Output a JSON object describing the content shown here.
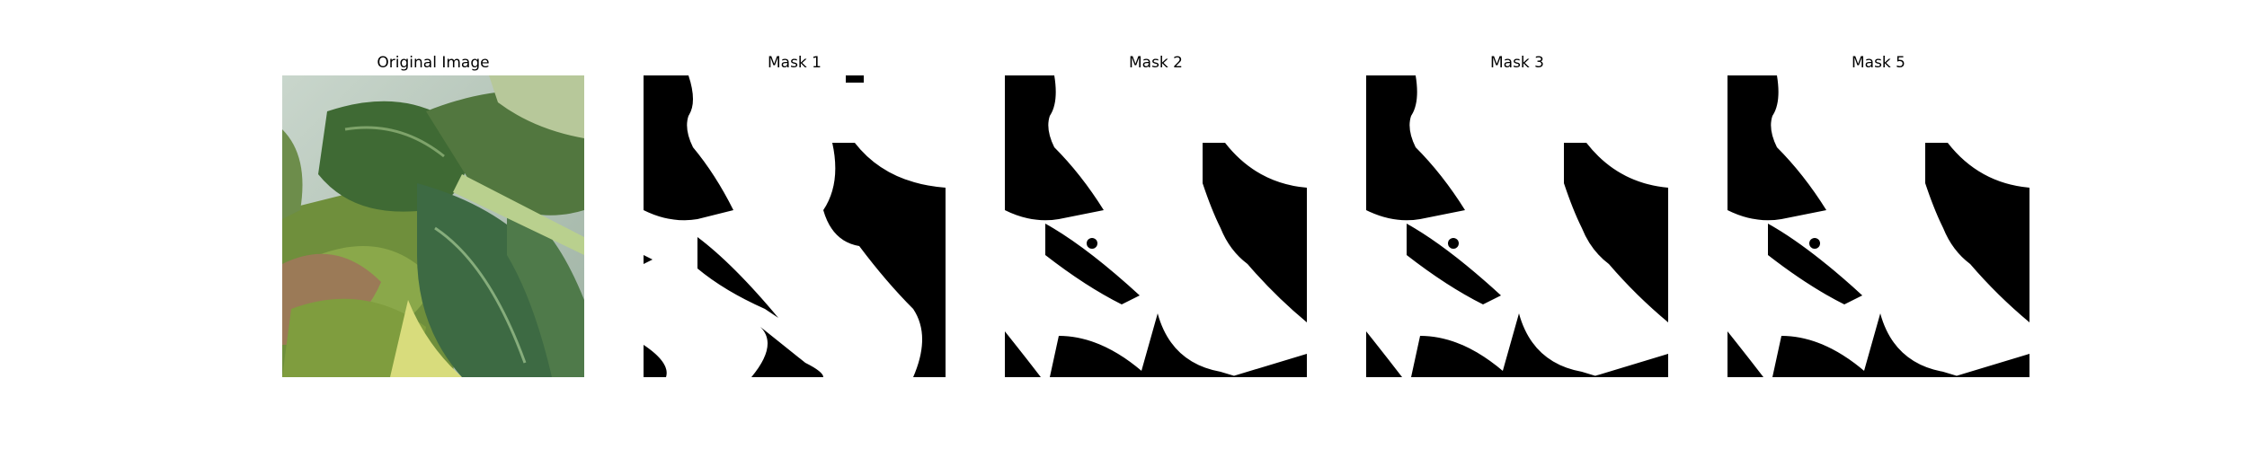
{
  "figure": {
    "panels": [
      {
        "title": "Original Image",
        "kind": "photo"
      },
      {
        "title": "Mask 1",
        "kind": "mask"
      },
      {
        "title": "Mask 2",
        "kind": "mask"
      },
      {
        "title": "Mask 3",
        "kind": "mask"
      },
      {
        "title": "Mask 5",
        "kind": "mask"
      }
    ]
  }
}
